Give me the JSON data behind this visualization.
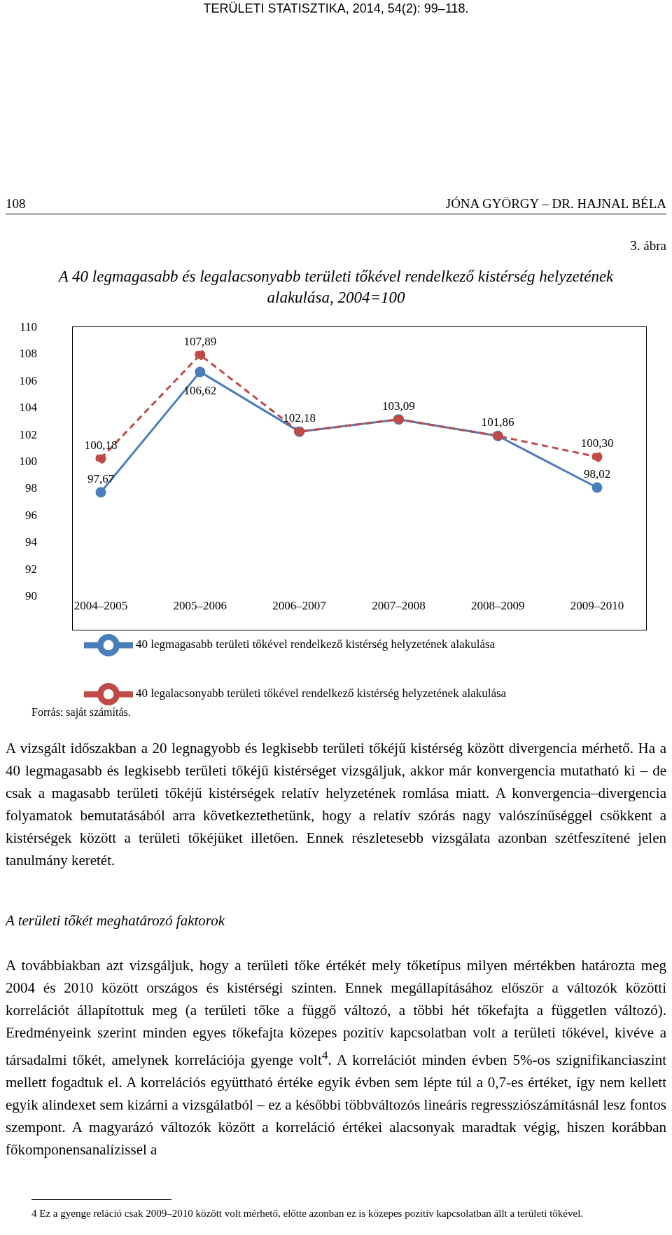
{
  "chart_data": {
    "type": "line",
    "title": "A 40 legmagasabb és legalacsonyabb területi tőkével rendelkező kistérség helyzetének alakulása, 2004=100",
    "categories": [
      "2004–2005",
      "2005–2006",
      "2006–2007",
      "2007–2008",
      "2008–2009",
      "2009–2010"
    ],
    "series": [
      {
        "name": "40 legmagasabb területi tőkével rendelkező kistérség helyzetének alakulása",
        "color": "#4a7ebb",
        "values": [
          97.67,
          106.62,
          102.18,
          103.09,
          101.86,
          98.02
        ],
        "value_labels": [
          "97,67",
          "106,62",
          "102,18",
          "103,09",
          "101,86",
          "98,02"
        ],
        "line_style": "solid"
      },
      {
        "name": "40 legalacsonyabb területi tőkével rendelkező kistérség helyzetének alakulása",
        "color": "#be4b48",
        "values": [
          100.18,
          107.89,
          102.18,
          103.09,
          101.86,
          100.3
        ],
        "value_labels": [
          "100,18",
          "107,89",
          null,
          null,
          null,
          "100,30"
        ],
        "line_style": "dashed"
      }
    ],
    "ylim": [
      90,
      110
    ],
    "yticks": [
      90,
      92,
      94,
      96,
      98,
      100,
      102,
      104,
      106,
      108,
      110
    ],
    "grid": false,
    "legend": "bottom",
    "marker": "circle",
    "annotations": [
      "TERÜLETI STATISZTIKA, 2014, 54(2): 99–118.",
      "108",
      "JÓNA GYÖRGY – DR. HAJNAL BÉLA",
      "3. ábra",
      "Forrás: saját számítás.",
      "A vizsgált időszakban a 20 legnagyobb és legkisebb területi tőkéjű kistérség között divergencia mérhető. Ha a 40 legmagasabb és legkisebb területi tőkéjű kistérséget vizsgáljuk, akkor már konvergencia mutatható ki – de csak a magasabb területi tőkéjű kistérségek relatív helyzetének romlása miatt. A konvergencia–divergencia folyamatok bemutatásából arra következtethetünk, hogy a relatív szórás nagy valószínűséggel csökkent a kistérségek között a területi tőkéjüket illetően. Ennek részletesebb vizsgálata azonban szétfeszítené jelen tanulmány keretét.",
      "A területi tőkét meghatározó faktorok",
      "A továbbiakban azt vizsgáljuk, hogy a területi tőke értékét mely tőketípus milyen mértékben határozta meg 2004 és 2010 között országos és kistérségi szinten. Ennek megállapításához először a változók közötti korrelációt állapítottuk meg (a területi tőke a függő változó, a többi hét tőkefajta a független változó). Eredményeink szerint minden egyes tőkefajta közepes pozitív kapcsolatban volt a területi tőkével, kivéve a társadalmi tőkét, amelynek korrelációja gyenge volt$^{4}$. A korrelációt minden évben 5%-os szignifikanciaszint mellett fogadtuk el. A korrelációs együttható értéke egyik évben sem lépte túl a 0,7-es értéket, így nem kellett egyik alindexet sem kizárni a vizsgálatból – ez a későbbi többváltozós lineáris regressziószámításnál lesz fontos szempont. A magyarázó változók között a korreláció értékei alacsonyak maradtak végig, hiszen korábban főkomponensanalízissel a",
      "4 Ez a gyenge reláció csak 2009–2010 között volt mérhető, előtte azonban ez is közepes pozitív kapcsolatban állt a területi tőkével."
    ]
  }
}
